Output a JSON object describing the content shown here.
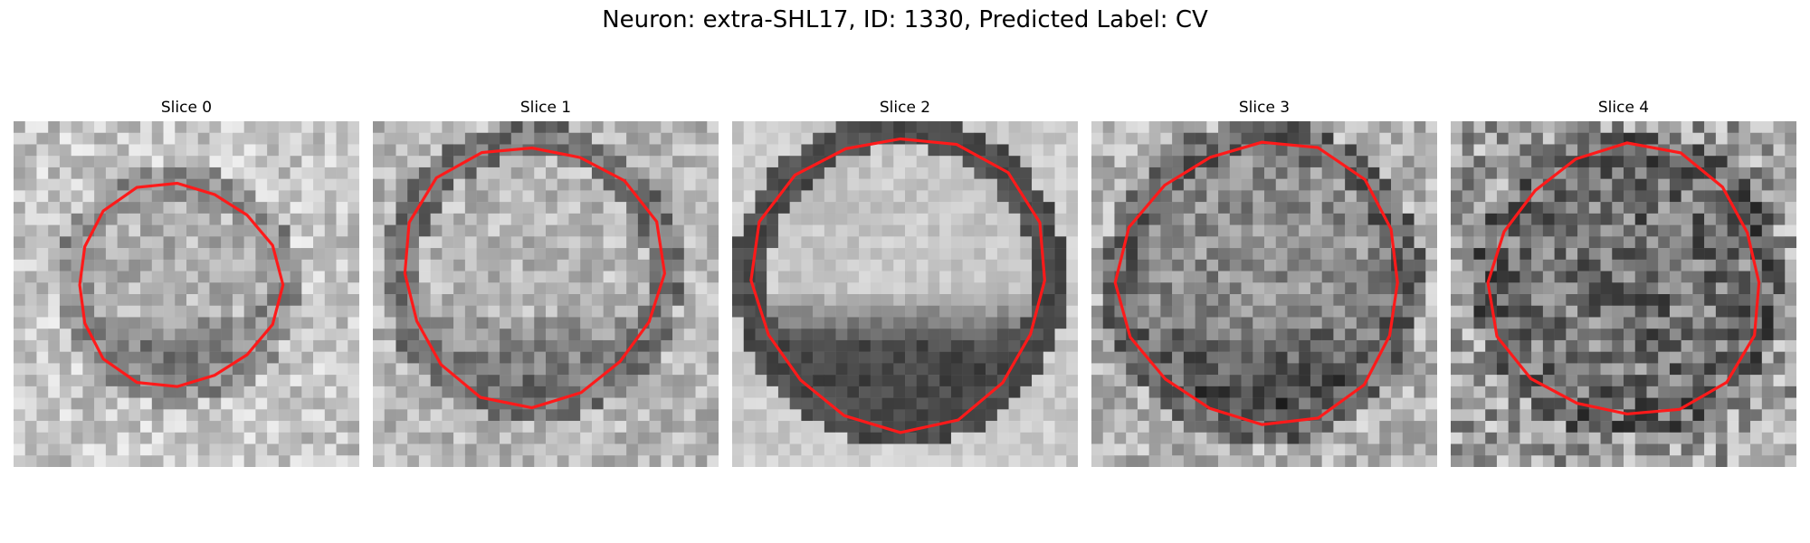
{
  "figure": {
    "title": "Neuron: extra-SHL17, ID: 1330, Predicted Label: CV"
  },
  "colors": {
    "contour": "#ff1a1a"
  },
  "slices": [
    {
      "label": "Slice 0"
    },
    {
      "label": "Slice 1"
    },
    {
      "label": "Slice 2"
    },
    {
      "label": "Slice 3"
    },
    {
      "label": "Slice 4"
    }
  ]
}
